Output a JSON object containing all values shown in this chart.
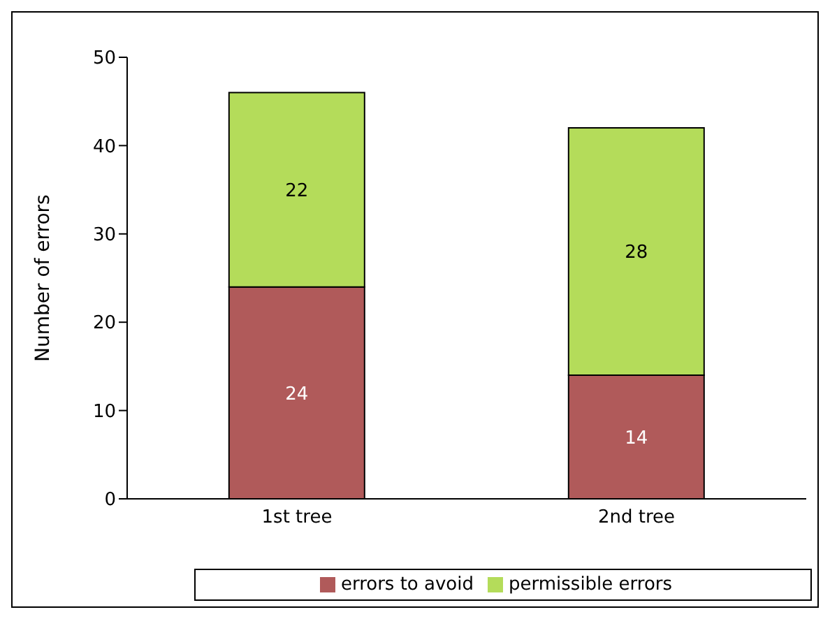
{
  "chart_data": {
    "type": "bar",
    "ylabel": "Number of errors",
    "categories": [
      "1st tree",
      "2nd tree"
    ],
    "series": [
      {
        "name": "errors to avoid",
        "color": "#b05a5a",
        "values": [
          24,
          14
        ]
      },
      {
        "name": "permissible errors",
        "color": "#b4dc5a",
        "values": [
          22,
          28
        ]
      }
    ],
    "stacked": true,
    "ylim": [
      0,
      50
    ],
    "yticks": [
      0,
      10,
      20,
      30,
      40,
      50
    ],
    "grid": false,
    "legend": "bottom",
    "data_labels": true
  }
}
